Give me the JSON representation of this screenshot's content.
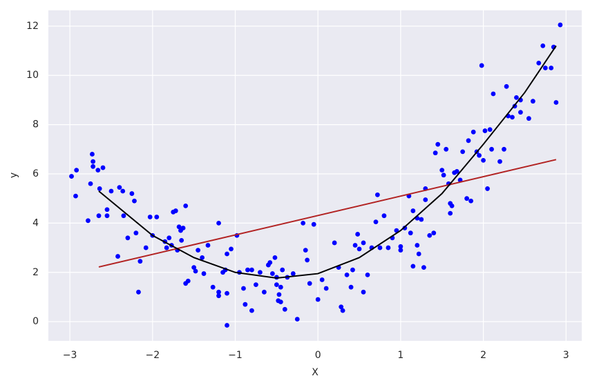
{
  "chart_data": {
    "type": "scatter",
    "xlabel": "X",
    "ylabel": "y",
    "xlim": [
      -3.26,
      3.19
    ],
    "ylim": [
      -0.78,
      12.64
    ],
    "xticks": [
      {
        "value": -3,
        "label": "−3"
      },
      {
        "value": -2,
        "label": "−2"
      },
      {
        "value": -1,
        "label": "−1"
      },
      0,
      1,
      2,
      3
    ],
    "yticks": [
      0,
      2,
      4,
      6,
      8,
      10,
      12
    ],
    "grid": true,
    "series": [
      {
        "color": "#0000ff",
        "x": [
          -2.98,
          -2.93,
          -2.92,
          -2.78,
          -2.75,
          -2.73,
          -2.72,
          -2.72,
          -2.66,
          -2.64,
          -2.6,
          -2.65,
          -2.55,
          -2.55,
          -2.5,
          -2.42,
          -2.4,
          -2.36,
          -2.35,
          -2.3,
          -2.25,
          -2.22,
          -2.2,
          -2.17,
          -2.15,
          -2.08,
          -2.03,
          -2.0,
          -1.95,
          -1.85,
          -1.83,
          -1.8,
          -1.77,
          -1.75,
          -1.72,
          -1.7,
          -1.68,
          -1.66,
          -1.65,
          -1.63,
          -1.6,
          -1.6,
          -1.57,
          -1.5,
          -1.48,
          -1.45,
          -1.4,
          -1.38,
          -1.33,
          -1.27,
          -1.2,
          -1.2,
          -1.2,
          -1.15,
          -1.12,
          -1.1,
          -1.1,
          -1.1,
          -1.05,
          -0.98,
          -0.95,
          -0.9,
          -0.88,
          -0.85,
          -0.8,
          -0.8,
          -0.75,
          -0.7,
          -0.65,
          -0.6,
          -0.58,
          -0.55,
          -0.52,
          -0.5,
          -0.5,
          -0.48,
          -0.47,
          -0.45,
          -0.45,
          -0.43,
          -0.4,
          -0.37,
          -0.3,
          -0.25,
          -0.18,
          -0.15,
          -0.13,
          -0.1,
          -0.05,
          0.0,
          0.05,
          0.1,
          0.2,
          0.25,
          0.28,
          0.3,
          0.35,
          0.4,
          0.42,
          0.45,
          0.48,
          0.5,
          0.55,
          0.55,
          0.6,
          0.65,
          0.7,
          0.72,
          0.75,
          0.8,
          0.85,
          0.9,
          0.95,
          1.0,
          1.0,
          1.05,
          1.1,
          1.12,
          1.15,
          1.15,
          1.2,
          1.2,
          1.22,
          1.25,
          1.28,
          1.3,
          1.3,
          1.35,
          1.4,
          1.42,
          1.45,
          1.5,
          1.52,
          1.55,
          1.58,
          1.6,
          1.6,
          1.62,
          1.65,
          1.68,
          1.72,
          1.75,
          1.8,
          1.82,
          1.85,
          1.88,
          1.92,
          1.95,
          1.98,
          2.0,
          2.02,
          2.05,
          2.08,
          2.1,
          2.12,
          2.2,
          2.25,
          2.28,
          2.3,
          2.35,
          2.38,
          2.4,
          2.45,
          2.45,
          2.55,
          2.6,
          2.67,
          2.72,
          2.75,
          2.82,
          2.85,
          2.88,
          2.93
        ],
        "values": [
          5.9,
          5.1,
          6.15,
          4.1,
          5.6,
          6.8,
          6.5,
          6.3,
          6.15,
          5.4,
          6.25,
          4.3,
          4.55,
          4.3,
          5.3,
          2.65,
          5.45,
          5.3,
          4.3,
          3.4,
          5.2,
          4.9,
          3.6,
          1.2,
          2.45,
          3.0,
          4.25,
          3.5,
          4.25,
          3.25,
          3.0,
          3.4,
          3.1,
          4.45,
          4.5,
          2.9,
          3.85,
          3.7,
          3.3,
          3.8,
          4.7,
          1.55,
          1.65,
          2.2,
          2.05,
          2.9,
          2.6,
          1.95,
          3.1,
          1.4,
          4.0,
          1.05,
          1.2,
          2.0,
          2.1,
          2.75,
          1.15,
          -0.15,
          2.95,
          3.5,
          2.0,
          1.35,
          0.7,
          2.1,
          2.1,
          0.45,
          1.5,
          2.0,
          1.2,
          2.3,
          2.4,
          1.95,
          2.6,
          1.5,
          1.8,
          0.85,
          1.1,
          0.8,
          1.4,
          2.1,
          0.5,
          1.8,
          1.95,
          0.1,
          4.0,
          2.9,
          2.5,
          1.55,
          3.95,
          0.9,
          1.7,
          1.35,
          3.2,
          2.2,
          0.6,
          0.45,
          1.9,
          1.4,
          2.1,
          3.1,
          3.55,
          2.95,
          3.2,
          1.2,
          1.9,
          3.0,
          4.05,
          5.15,
          3.0,
          4.3,
          3.0,
          3.4,
          3.7,
          3.05,
          2.9,
          3.8,
          5.1,
          3.6,
          4.5,
          2.25,
          4.2,
          3.1,
          2.75,
          4.15,
          2.2,
          4.95,
          5.4,
          3.5,
          3.6,
          6.85,
          7.2,
          6.15,
          5.95,
          7.0,
          5.6,
          4.4,
          4.8,
          4.7,
          6.05,
          6.1,
          5.75,
          6.9,
          5.0,
          7.35,
          4.9,
          7.7,
          6.9,
          6.75,
          10.4,
          6.55,
          7.75,
          5.4,
          7.8,
          7.0,
          9.25,
          6.5,
          7.0,
          9.55,
          8.35,
          8.3,
          8.75,
          9.1,
          8.5,
          9.0,
          8.25,
          8.95,
          10.5,
          11.2,
          10.3,
          10.3,
          11.15,
          8.9,
          12.05
        ]
      }
    ],
    "lines": [
      {
        "color": "#b22222",
        "x": [
          -2.65,
          2.88
        ],
        "values": [
          2.22,
          6.58
        ]
      },
      {
        "color": "#000000",
        "x": [
          -2.65,
          -2.0,
          -1.5,
          -1.0,
          -0.5,
          0.0,
          0.5,
          1.0,
          1.5,
          2.0,
          2.5,
          2.88
        ],
        "values": [
          5.3,
          3.5,
          2.6,
          2.0,
          1.77,
          1.95,
          2.6,
          3.7,
          5.2,
          7.2,
          9.3,
          11.2
        ]
      }
    ]
  }
}
